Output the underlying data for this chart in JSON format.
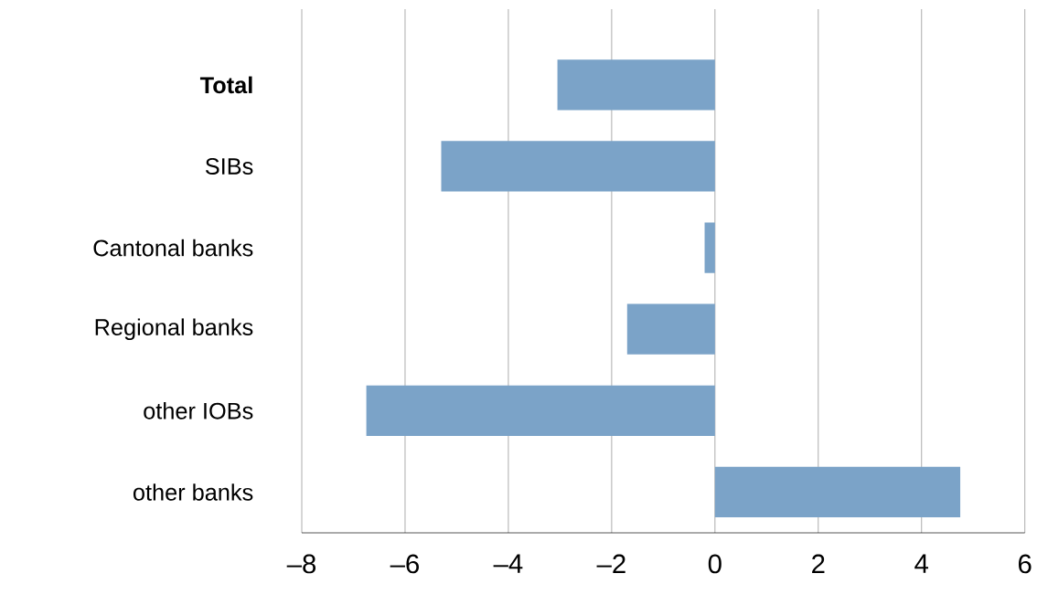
{
  "chart_data": {
    "type": "bar",
    "orientation": "horizontal",
    "categories": [
      "Total",
      "SIBs",
      "Cantonal banks",
      "Regional banks",
      "other IOBs",
      "other banks"
    ],
    "values": [
      -3.05,
      -5.3,
      -0.2,
      -1.7,
      -6.75,
      4.75
    ],
    "color": "#7ba3c8",
    "xlim": [
      -8,
      6
    ],
    "xticks": [
      {
        "value": -8,
        "label": "–8"
      },
      {
        "value": -6,
        "label": "–6"
      },
      {
        "value": -4,
        "label": "–4"
      },
      {
        "value": -2,
        "label": "–2"
      },
      0,
      2,
      4,
      6
    ],
    "grid": "x"
  }
}
